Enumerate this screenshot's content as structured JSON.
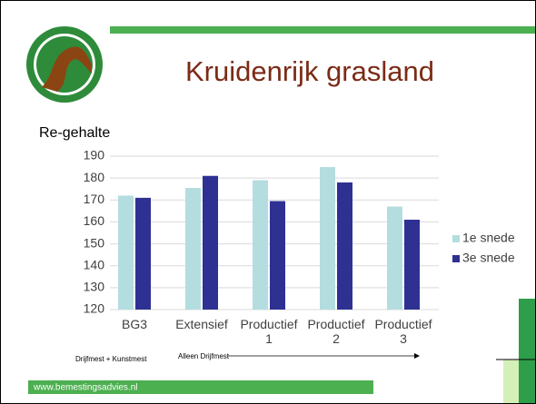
{
  "slide_title": "Kruidenrijk grasland",
  "footer": "www.bemestingsadvies.nl",
  "chart_data": {
    "type": "bar",
    "title": "Re-gehalte",
    "categories": [
      "BG3",
      "Extensief",
      "Productief 1",
      "Productief 2",
      "Productief 3"
    ],
    "series": [
      {
        "name": "1e snede",
        "color": "#b4dde0",
        "values": [
          172,
          175.5,
          179,
          185,
          167
        ]
      },
      {
        "name": "3e snede",
        "color": "#2e3192",
        "values": [
          171,
          181,
          169.5,
          178,
          161
        ]
      }
    ],
    "ylim": [
      120,
      190
    ],
    "yticks": [
      120,
      130,
      140,
      150,
      160,
      170,
      180,
      190
    ],
    "grid": true,
    "annotations": [
      "Drijfmest + Kunstmest",
      "Alleen Drijfmest"
    ]
  }
}
